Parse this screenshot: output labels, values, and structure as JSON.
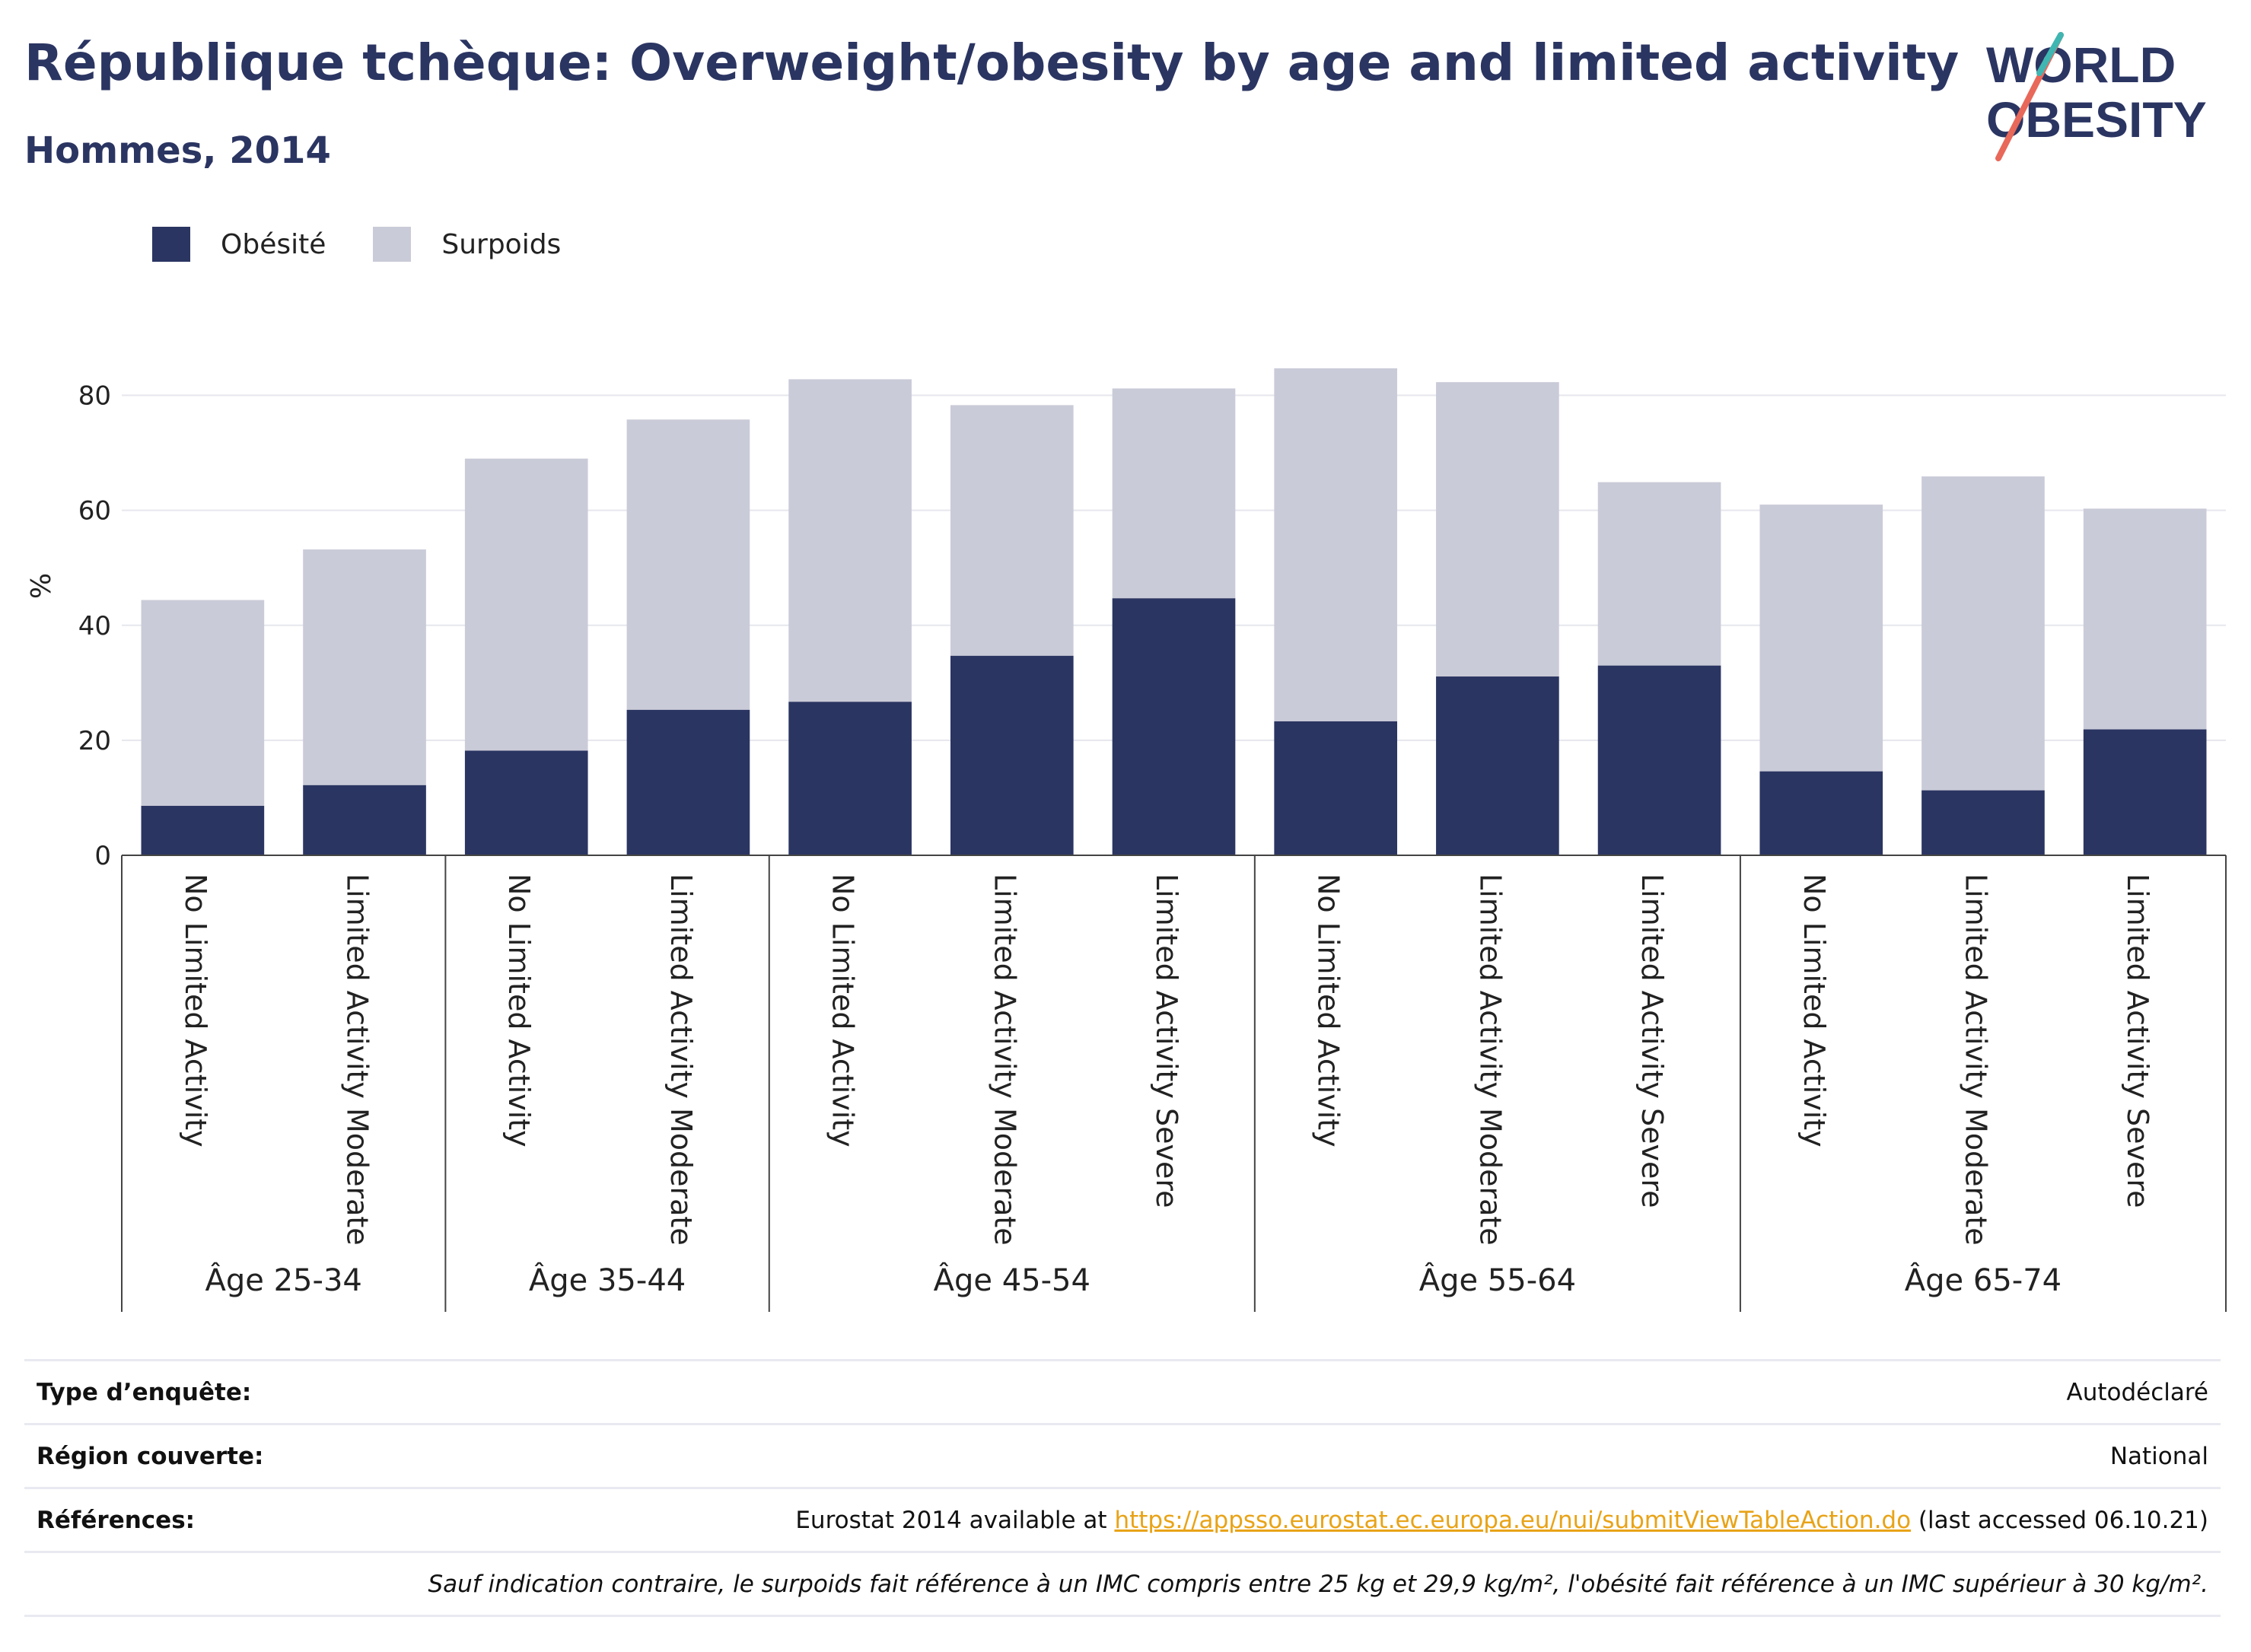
{
  "header": {
    "title": "République tchèque: Overweight/obesity by age and limited activity",
    "subtitle": "Hommes, 2014"
  },
  "logo": {
    "line1": "WORLD",
    "line2": "OBESITY"
  },
  "legend": [
    {
      "label": "Obésité",
      "color": "#2b3562"
    },
    {
      "label": "Surpoids",
      "color": "#cacbd8"
    }
  ],
  "info": {
    "survey_label": "Type d’enquête:",
    "survey_value": "Autodéclaré",
    "region_label": "Région couverte:",
    "region_value": "National",
    "refs_label": "Références:",
    "refs_prefix": "Eurostat 2014 available at ",
    "refs_link": "https://appsso.eurostat.ec.europa.eu/nui/submitViewTableAction.do",
    "refs_suffix": " (last accessed 06.10.21)",
    "note": "Sauf indication contraire, le surpoids fait référence à un IMC compris entre 25 kg et 29,9 kg/m², l'obésité fait référence à un IMC supérieur à 30 kg/m²."
  },
  "chart_data": {
    "type": "bar",
    "stacked": true,
    "ylabel": "%",
    "ylim": [
      0,
      90
    ],
    "yticks": [
      0,
      20,
      40,
      60,
      80
    ],
    "grid": true,
    "legend_position": "top-left",
    "groups": [
      {
        "label": "Âge 25-34",
        "categories": [
          "No Limited Activity",
          "Limited Activity Moderate"
        ]
      },
      {
        "label": "Âge 35-44",
        "categories": [
          "No Limited Activity",
          "Limited Activity Moderate"
        ]
      },
      {
        "label": "Âge 45-54",
        "categories": [
          "No Limited Activity",
          "Limited Activity Moderate",
          "Limited Activity Severe"
        ]
      },
      {
        "label": "Âge 55-64",
        "categories": [
          "No Limited Activity",
          "Limited Activity Moderate",
          "Limited Activity Severe"
        ]
      },
      {
        "label": "Âge 65-74",
        "categories": [
          "No Limited Activity",
          "Limited Activity Moderate",
          "Limited Activity Severe"
        ]
      }
    ],
    "series": [
      {
        "name": "Obésité",
        "color": "#2b3562",
        "values": [
          8.6,
          12.2,
          18.2,
          25.3,
          26.7,
          34.7,
          44.7,
          23.3,
          31.1,
          33.0,
          14.6,
          11.3,
          21.9
        ]
      },
      {
        "name": "Surpoids",
        "color": "#cacbd8",
        "values": [
          35.8,
          41.0,
          50.8,
          50.5,
          56.1,
          43.6,
          36.5,
          61.4,
          51.2,
          31.9,
          46.4,
          54.6,
          38.4
        ]
      }
    ]
  }
}
